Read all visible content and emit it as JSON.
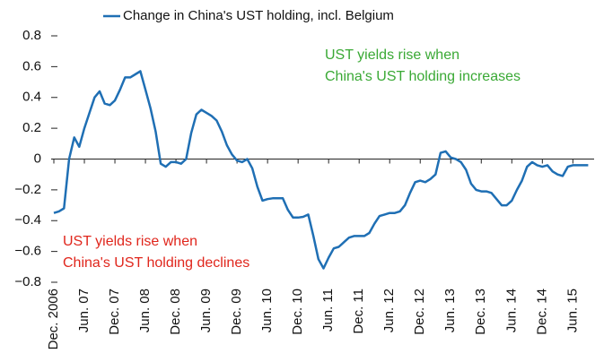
{
  "chart_data": {
    "type": "line",
    "legend": "Change in China's UST holding, incl. Belgium",
    "series": [
      {
        "name": "Change in China's UST holding, incl. Belgium",
        "color": "#1f6fb4",
        "values": [
          -0.35,
          -0.34,
          -0.32,
          0.0,
          0.14,
          0.08,
          0.2,
          0.3,
          0.4,
          0.44,
          0.36,
          0.35,
          0.38,
          0.45,
          0.53,
          0.53,
          0.55,
          0.57,
          0.45,
          0.33,
          0.18,
          -0.03,
          -0.05,
          -0.02,
          -0.02,
          -0.03,
          0.0,
          0.17,
          0.29,
          0.32,
          0.3,
          0.28,
          0.25,
          0.18,
          0.09,
          0.03,
          -0.01,
          -0.02,
          0.0,
          -0.06,
          -0.18,
          -0.27,
          -0.26,
          -0.255,
          -0.255,
          -0.255,
          -0.33,
          -0.38,
          -0.38,
          -0.375,
          -0.36,
          -0.5,
          -0.65,
          -0.71,
          -0.64,
          -0.58,
          -0.57,
          -0.54,
          -0.51,
          -0.5,
          -0.5,
          -0.5,
          -0.48,
          -0.42,
          -0.37,
          -0.36,
          -0.35,
          -0.35,
          -0.34,
          -0.3,
          -0.22,
          -0.15,
          -0.14,
          -0.15,
          -0.13,
          -0.1,
          0.04,
          0.05,
          0.01,
          0.0,
          -0.02,
          -0.07,
          -0.16,
          -0.2,
          -0.21,
          -0.21,
          -0.22,
          -0.26,
          -0.3,
          -0.3,
          -0.27,
          -0.2,
          -0.14,
          -0.05,
          -0.02,
          -0.04,
          -0.05,
          -0.04,
          -0.08,
          -0.1,
          -0.11,
          -0.05,
          -0.04,
          -0.04,
          -0.04,
          -0.04
        ]
      }
    ],
    "categories": [
      "Dec. 2006",
      null,
      null,
      null,
      null,
      null,
      "Jun. 07",
      null,
      null,
      null,
      null,
      null,
      "Dec. 07",
      null,
      null,
      null,
      null,
      null,
      "Jun. 08",
      null,
      null,
      null,
      null,
      null,
      "Dec. 08",
      null,
      null,
      null,
      null,
      null,
      "Jun. 09",
      null,
      null,
      null,
      null,
      null,
      "Dec. 09",
      null,
      null,
      null,
      null,
      null,
      "Jun. 10",
      null,
      null,
      null,
      null,
      null,
      "Dec. 10",
      null,
      null,
      null,
      null,
      null,
      "Jun. 11",
      null,
      null,
      null,
      null,
      null,
      "Dec. 11",
      null,
      null,
      null,
      null,
      null,
      "Jun. 12",
      null,
      null,
      null,
      null,
      null,
      "Dec. 12",
      null,
      null,
      null,
      null,
      null,
      "Jun. 13",
      null,
      null,
      null,
      null,
      null,
      "Dec. 13",
      null,
      null,
      null,
      null,
      null,
      "Jun. 14",
      null,
      null,
      null,
      null,
      null,
      "Dec. 14",
      null,
      null,
      null,
      null,
      null,
      "Jun. 15",
      null,
      null,
      null
    ],
    "ylim": [
      -0.8,
      0.8
    ],
    "yticks": [
      0.8,
      0.6,
      0.4,
      0.2,
      0,
      {
        "value": -0.2,
        "label": "−0.2"
      },
      {
        "value": -0.4,
        "label": "−0.4"
      },
      {
        "value": -0.6,
        "label": "−0.6"
      },
      {
        "value": -0.8,
        "label": "−0.8"
      }
    ],
    "annotations": [
      {
        "lines": [
          "UST yields rise when",
          "China's UST holding increases"
        ],
        "color": "#3aa935"
      },
      {
        "lines": [
          "UST yields rise when",
          "China's UST holding declines"
        ],
        "color": "#e0261c"
      }
    ]
  }
}
